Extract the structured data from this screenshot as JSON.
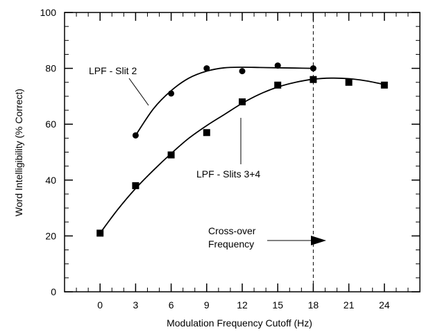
{
  "chart_data": {
    "type": "scatter",
    "title": "",
    "xlabel": "Modulation Frequency Cutoff (Hz)",
    "ylabel": "Word Intelligibility (% Correct)",
    "xlim": [
      -3,
      27
    ],
    "ylim": [
      0,
      100
    ],
    "x_ticks": [
      0,
      3,
      6,
      9,
      12,
      15,
      18,
      21,
      24
    ],
    "y_ticks": [
      0,
      20,
      40,
      60,
      80,
      100
    ],
    "x_minor_step": 1,
    "y_minor_step": 5,
    "grid": false,
    "legend": "none",
    "series": [
      {
        "name": "LPF - Slit 2",
        "marker": "circle",
        "x": [
          3,
          6,
          9,
          12,
          15,
          18
        ],
        "y": [
          56,
          71,
          80,
          79,
          81,
          80
        ],
        "fit_curve": {
          "x": [
            3,
            4.5,
            6,
            7.5,
            9,
            10.5,
            12,
            13.5,
            15,
            16.5,
            18
          ],
          "y": [
            56,
            65.5,
            72,
            76.5,
            79,
            80.2,
            80.4,
            80.3,
            80.2,
            80.1,
            80
          ]
        }
      },
      {
        "name": "LPF - Slits 3+4",
        "marker": "square",
        "x": [
          0,
          3,
          6,
          9,
          12,
          15,
          18,
          21,
          24
        ],
        "y": [
          21,
          38,
          49,
          57,
          68,
          74,
          76,
          75,
          74
        ],
        "fit_curve": {
          "x": [
            0,
            1.5,
            3,
            4.5,
            6,
            7.5,
            9,
            10.5,
            12,
            13.5,
            15,
            16.5,
            18,
            19.5,
            21,
            22.5,
            24
          ],
          "y": [
            21,
            29.5,
            37,
            43.5,
            49.5,
            55,
            59.5,
            63.5,
            67.5,
            70.8,
            73.3,
            75,
            76.1,
            76.5,
            76.3,
            75.5,
            74.2
          ]
        }
      }
    ],
    "reference_line": {
      "x": 18,
      "style": "dashed"
    },
    "annotations": [
      {
        "text": "LPF - Slit 2",
        "points_to_series": 0
      },
      {
        "text": "LPF - Slits 3+4",
        "points_to_series": 1
      },
      {
        "text": "Cross-over",
        "line2": "Frequency",
        "arrow_to_x": 18
      }
    ],
    "colors": {
      "line": "#000000",
      "marker": "#000000",
      "background": "#ffffff"
    }
  }
}
